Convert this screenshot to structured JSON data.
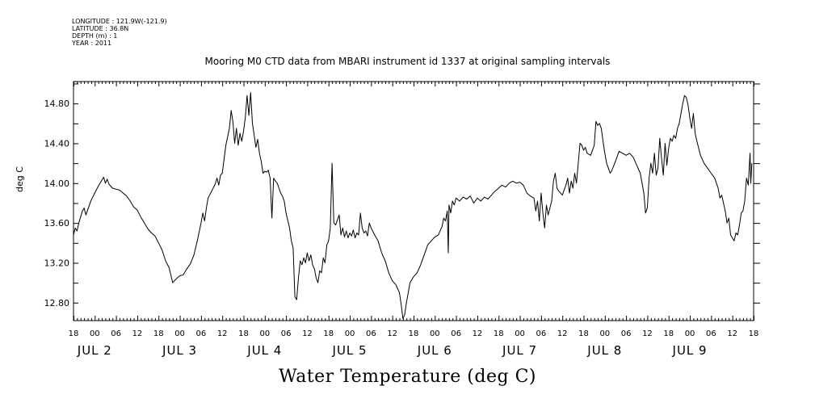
{
  "header": {
    "lines": [
      "LONGITUDE : 121.9W(-121.9)",
      "LATITUDE : 36.8N",
      "DEPTH (m) : 1",
      "YEAR : 2011"
    ]
  },
  "chart_data": {
    "type": "line",
    "title": "Mooring M0 CTD data from MBARI instrument id 1337 at original sampling intervals",
    "xlabel": "Water Temperature (deg C)",
    "ylabel": "deg C",
    "ylim": [
      12.62,
      15.02
    ],
    "yticks": [
      12.8,
      13.2,
      13.6,
      14.0,
      14.4,
      14.8
    ],
    "ytick_labels": [
      "12.80",
      "13.20",
      "13.60",
      "14.00",
      "14.40",
      "14.80"
    ],
    "xlim_hours": [
      18,
      210
    ],
    "x_hour_ticks": [
      "18",
      "00",
      "06",
      "12",
      "18",
      "00",
      "06",
      "12",
      "18",
      "00",
      "06",
      "12",
      "18",
      "00",
      "06",
      "12",
      "18",
      "00",
      "06",
      "12",
      "18",
      "00",
      "06",
      "12",
      "18",
      "00",
      "06",
      "12",
      "18",
      "00",
      "06",
      "12",
      "18"
    ],
    "x_day_labels": [
      {
        "label": "JUL 2",
        "day": 2
      },
      {
        "label": "JUL 3",
        "day": 3
      },
      {
        "label": "JUL 4",
        "day": 4
      },
      {
        "label": "JUL 5",
        "day": 5
      },
      {
        "label": "JUL 6",
        "day": 6
      },
      {
        "label": "JUL 7",
        "day": 7
      },
      {
        "label": "JUL 8",
        "day": 8
      },
      {
        "label": "JUL 9",
        "day": 9
      }
    ],
    "grid": false,
    "series": [
      {
        "color": "#000000",
        "points": [
          [
            18.0,
            13.48
          ],
          [
            18.5,
            13.55
          ],
          [
            19.0,
            13.52
          ],
          [
            19.5,
            13.6
          ],
          [
            20.0,
            13.66
          ],
          [
            20.5,
            13.72
          ],
          [
            21.0,
            13.75
          ],
          [
            21.5,
            13.68
          ],
          [
            22.0,
            13.73
          ],
          [
            22.5,
            13.78
          ],
          [
            23.0,
            13.83
          ],
          [
            24.0,
            13.9
          ],
          [
            25.0,
            13.97
          ],
          [
            26.0,
            14.03
          ],
          [
            26.5,
            14.06
          ],
          [
            27.0,
            14.0
          ],
          [
            27.5,
            14.04
          ],
          [
            28.0,
            13.99
          ],
          [
            29.0,
            13.95
          ],
          [
            30.0,
            13.94
          ],
          [
            31.0,
            13.93
          ],
          [
            32.0,
            13.9
          ],
          [
            33.0,
            13.87
          ],
          [
            34.0,
            13.82
          ],
          [
            35.0,
            13.76
          ],
          [
            36.0,
            13.73
          ],
          [
            37.0,
            13.66
          ],
          [
            38.0,
            13.6
          ],
          [
            39.0,
            13.54
          ],
          [
            40.0,
            13.5
          ],
          [
            41.0,
            13.47
          ],
          [
            42.0,
            13.4
          ],
          [
            43.0,
            13.33
          ],
          [
            44.0,
            13.22
          ],
          [
            45.0,
            13.15
          ],
          [
            46.0,
            13.0
          ],
          [
            47.0,
            13.04
          ],
          [
            48.0,
            13.07
          ],
          [
            49.0,
            13.08
          ],
          [
            50.0,
            13.14
          ],
          [
            51.0,
            13.19
          ],
          [
            52.0,
            13.28
          ],
          [
            53.0,
            13.43
          ],
          [
            54.0,
            13.6
          ],
          [
            54.5,
            13.7
          ],
          [
            55.0,
            13.62
          ],
          [
            55.5,
            13.75
          ],
          [
            56.0,
            13.85
          ],
          [
            57.0,
            13.92
          ],
          [
            58.0,
            13.99
          ],
          [
            58.5,
            14.05
          ],
          [
            59.0,
            13.98
          ],
          [
            59.5,
            14.08
          ],
          [
            60.0,
            14.1
          ],
          [
            61.0,
            14.38
          ],
          [
            62.0,
            14.55
          ],
          [
            62.5,
            14.73
          ],
          [
            63.0,
            14.62
          ],
          [
            63.5,
            14.4
          ],
          [
            64.0,
            14.55
          ],
          [
            64.5,
            14.38
          ],
          [
            65.0,
            14.5
          ],
          [
            65.5,
            14.42
          ],
          [
            66.0,
            14.52
          ],
          [
            66.5,
            14.66
          ],
          [
            67.0,
            14.88
          ],
          [
            67.5,
            14.68
          ],
          [
            68.0,
            14.91
          ],
          [
            68.5,
            14.6
          ],
          [
            69.0,
            14.48
          ],
          [
            69.5,
            14.36
          ],
          [
            70.0,
            14.44
          ],
          [
            70.5,
            14.3
          ],
          [
            71.0,
            14.22
          ],
          [
            71.5,
            14.1
          ],
          [
            72.0,
            14.12
          ],
          [
            72.5,
            14.11
          ],
          [
            73.0,
            14.13
          ],
          [
            73.5,
            14.05
          ],
          [
            74.0,
            13.65
          ],
          [
            74.5,
            14.05
          ],
          [
            75.0,
            14.02
          ],
          [
            75.5,
            14.0
          ],
          [
            76.0,
            13.95
          ],
          [
            76.5,
            13.9
          ],
          [
            77.0,
            13.87
          ],
          [
            77.5,
            13.82
          ],
          [
            78.0,
            13.7
          ],
          [
            79.0,
            13.55
          ],
          [
            79.5,
            13.42
          ],
          [
            80.0,
            13.35
          ],
          [
            80.5,
            12.86
          ],
          [
            81.0,
            12.83
          ],
          [
            81.5,
            13.05
          ],
          [
            82.0,
            13.22
          ],
          [
            82.5,
            13.18
          ],
          [
            83.0,
            13.25
          ],
          [
            83.5,
            13.2
          ],
          [
            84.0,
            13.3
          ],
          [
            84.5,
            13.22
          ],
          [
            85.0,
            13.28
          ],
          [
            85.5,
            13.18
          ],
          [
            86.0,
            13.14
          ],
          [
            86.5,
            13.05
          ],
          [
            87.0,
            13.0
          ],
          [
            87.5,
            13.12
          ],
          [
            88.0,
            13.1
          ],
          [
            88.5,
            13.25
          ],
          [
            89.0,
            13.2
          ],
          [
            89.5,
            13.38
          ],
          [
            90.0,
            13.42
          ],
          [
            90.5,
            13.55
          ],
          [
            91.0,
            14.2
          ],
          [
            91.5,
            13.6
          ],
          [
            92.0,
            13.58
          ],
          [
            93.0,
            13.68
          ],
          [
            93.5,
            13.48
          ],
          [
            94.0,
            13.55
          ],
          [
            94.5,
            13.46
          ],
          [
            95.0,
            13.52
          ],
          [
            95.5,
            13.45
          ],
          [
            96.0,
            13.5
          ],
          [
            96.5,
            13.47
          ],
          [
            97.0,
            13.53
          ],
          [
            97.5,
            13.45
          ],
          [
            98.0,
            13.5
          ],
          [
            98.5,
            13.48
          ],
          [
            99.0,
            13.7
          ],
          [
            99.5,
            13.55
          ],
          [
            100.0,
            13.5
          ],
          [
            100.5,
            13.52
          ],
          [
            101.0,
            13.47
          ],
          [
            101.5,
            13.6
          ],
          [
            102.0,
            13.55
          ],
          [
            103.0,
            13.48
          ],
          [
            104.0,
            13.42
          ],
          [
            105.0,
            13.3
          ],
          [
            106.0,
            13.22
          ],
          [
            107.0,
            13.1
          ],
          [
            108.0,
            13.02
          ],
          [
            109.0,
            12.98
          ],
          [
            110.0,
            12.9
          ],
          [
            110.5,
            12.78
          ],
          [
            111.0,
            12.64
          ],
          [
            111.5,
            12.68
          ],
          [
            112.0,
            12.8
          ],
          [
            113.0,
            13.0
          ],
          [
            114.0,
            13.06
          ],
          [
            115.0,
            13.1
          ],
          [
            116.0,
            13.18
          ],
          [
            117.0,
            13.28
          ],
          [
            118.0,
            13.38
          ],
          [
            119.0,
            13.42
          ],
          [
            120.0,
            13.46
          ],
          [
            121.0,
            13.48
          ],
          [
            122.0,
            13.56
          ],
          [
            122.5,
            13.65
          ],
          [
            123.0,
            13.62
          ],
          [
            123.5,
            13.72
          ],
          [
            123.8,
            13.3
          ],
          [
            124.0,
            13.78
          ],
          [
            124.5,
            13.7
          ],
          [
            125.0,
            13.82
          ],
          [
            125.5,
            13.78
          ],
          [
            126.0,
            13.85
          ],
          [
            127.0,
            13.82
          ],
          [
            128.0,
            13.86
          ],
          [
            129.0,
            13.84
          ],
          [
            130.0,
            13.87
          ],
          [
            131.0,
            13.8
          ],
          [
            132.0,
            13.85
          ],
          [
            133.0,
            13.82
          ],
          [
            134.0,
            13.86
          ],
          [
            135.0,
            13.84
          ],
          [
            136.0,
            13.88
          ],
          [
            137.0,
            13.92
          ],
          [
            138.0,
            13.95
          ],
          [
            139.0,
            13.98
          ],
          [
            140.0,
            13.96
          ],
          [
            141.0,
            14.0
          ],
          [
            142.0,
            14.02
          ],
          [
            143.0,
            14.0
          ],
          [
            144.0,
            14.01
          ],
          [
            145.0,
            13.98
          ],
          [
            146.0,
            13.9
          ],
          [
            147.0,
            13.87
          ],
          [
            148.0,
            13.85
          ],
          [
            148.5,
            13.72
          ],
          [
            149.0,
            13.82
          ],
          [
            149.5,
            13.62
          ],
          [
            150.0,
            13.9
          ],
          [
            150.5,
            13.7
          ],
          [
            151.0,
            13.55
          ],
          [
            151.5,
            13.78
          ],
          [
            152.0,
            13.68
          ],
          [
            153.0,
            13.82
          ],
          [
            153.5,
            14.02
          ],
          [
            154.0,
            14.1
          ],
          [
            154.5,
            13.95
          ],
          [
            155.0,
            13.92
          ],
          [
            156.0,
            13.88
          ],
          [
            157.0,
            13.98
          ],
          [
            157.5,
            14.05
          ],
          [
            158.0,
            13.9
          ],
          [
            158.5,
            14.02
          ],
          [
            159.0,
            13.95
          ],
          [
            159.5,
            14.1
          ],
          [
            160.0,
            14.0
          ],
          [
            160.5,
            14.2
          ],
          [
            161.0,
            14.4
          ],
          [
            161.5,
            14.38
          ],
          [
            162.0,
            14.33
          ],
          [
            162.5,
            14.36
          ],
          [
            163.0,
            14.3
          ],
          [
            164.0,
            14.28
          ],
          [
            165.0,
            14.38
          ],
          [
            165.5,
            14.62
          ],
          [
            166.0,
            14.58
          ],
          [
            166.5,
            14.6
          ],
          [
            167.0,
            14.55
          ],
          [
            167.5,
            14.42
          ],
          [
            168.0,
            14.3
          ],
          [
            168.5,
            14.2
          ],
          [
            169.0,
            14.15
          ],
          [
            169.5,
            14.1
          ],
          [
            170.0,
            14.13
          ],
          [
            171.0,
            14.22
          ],
          [
            172.0,
            14.32
          ],
          [
            173.0,
            14.3
          ],
          [
            174.0,
            14.28
          ],
          [
            175.0,
            14.3
          ],
          [
            176.0,
            14.26
          ],
          [
            177.0,
            14.18
          ],
          [
            178.0,
            14.1
          ],
          [
            179.0,
            13.9
          ],
          [
            179.5,
            13.7
          ],
          [
            180.0,
            13.75
          ],
          [
            180.5,
            14.05
          ],
          [
            181.0,
            14.2
          ],
          [
            181.5,
            14.1
          ],
          [
            182.0,
            14.3
          ],
          [
            182.5,
            14.08
          ],
          [
            183.0,
            14.15
          ],
          [
            183.5,
            14.45
          ],
          [
            184.0,
            14.25
          ],
          [
            184.5,
            14.08
          ],
          [
            185.0,
            14.4
          ],
          [
            185.5,
            14.18
          ],
          [
            186.0,
            14.35
          ],
          [
            186.5,
            14.45
          ],
          [
            187.0,
            14.42
          ],
          [
            187.5,
            14.48
          ],
          [
            188.0,
            14.45
          ],
          [
            188.5,
            14.55
          ],
          [
            189.0,
            14.6
          ],
          [
            189.5,
            14.7
          ],
          [
            190.0,
            14.8
          ],
          [
            190.5,
            14.88
          ],
          [
            191.0,
            14.86
          ],
          [
            191.5,
            14.78
          ],
          [
            192.0,
            14.65
          ],
          [
            192.5,
            14.55
          ],
          [
            193.0,
            14.7
          ],
          [
            193.5,
            14.5
          ],
          [
            194.0,
            14.42
          ],
          [
            194.5,
            14.35
          ],
          [
            195.0,
            14.28
          ],
          [
            196.0,
            14.2
          ],
          [
            197.0,
            14.15
          ],
          [
            198.0,
            14.1
          ],
          [
            199.0,
            14.05
          ],
          [
            200.0,
            13.95
          ],
          [
            200.5,
            13.85
          ],
          [
            201.0,
            13.88
          ],
          [
            201.5,
            13.8
          ],
          [
            202.0,
            13.72
          ],
          [
            202.5,
            13.6
          ],
          [
            203.0,
            13.65
          ],
          [
            203.5,
            13.48
          ],
          [
            204.0,
            13.45
          ],
          [
            204.5,
            13.42
          ],
          [
            205.0,
            13.5
          ],
          [
            205.5,
            13.48
          ],
          [
            206.0,
            13.58
          ],
          [
            206.5,
            13.7
          ],
          [
            207.0,
            13.72
          ],
          [
            207.5,
            13.82
          ],
          [
            208.0,
            14.05
          ],
          [
            208.5,
            13.98
          ],
          [
            209.0,
            14.3
          ],
          [
            209.2,
            14.0
          ],
          [
            209.5,
            14.2
          ]
        ]
      }
    ]
  }
}
